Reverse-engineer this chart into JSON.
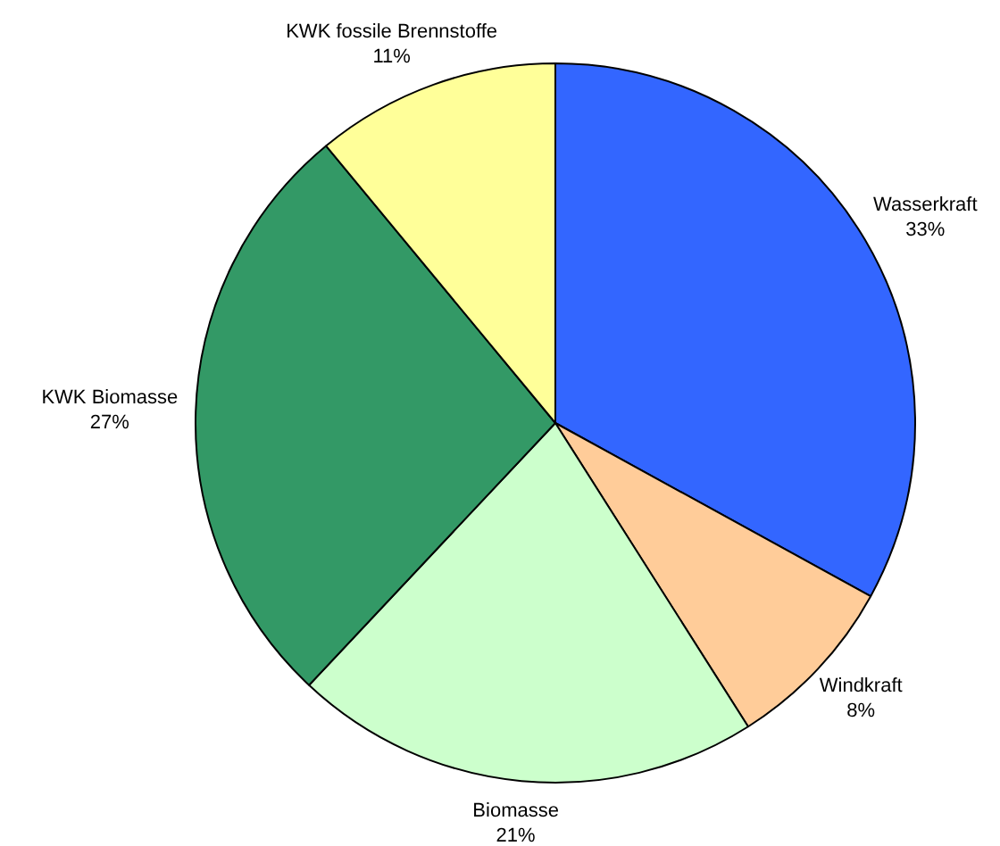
{
  "chart_data": {
    "type": "pie",
    "categories": [
      "Wasserkraft",
      "Windkraft",
      "Biomasse",
      "KWK Biomasse",
      "KWK fossile Brennstoffe"
    ],
    "values": [
      33,
      8,
      21,
      27,
      11
    ],
    "value_labels": [
      "33%",
      "8%",
      "21%",
      "27%",
      "11%"
    ],
    "colors": [
      "#3366ff",
      "#ffcc99",
      "#ccffcc",
      "#339966",
      "#ffff99"
    ],
    "legend": false
  }
}
